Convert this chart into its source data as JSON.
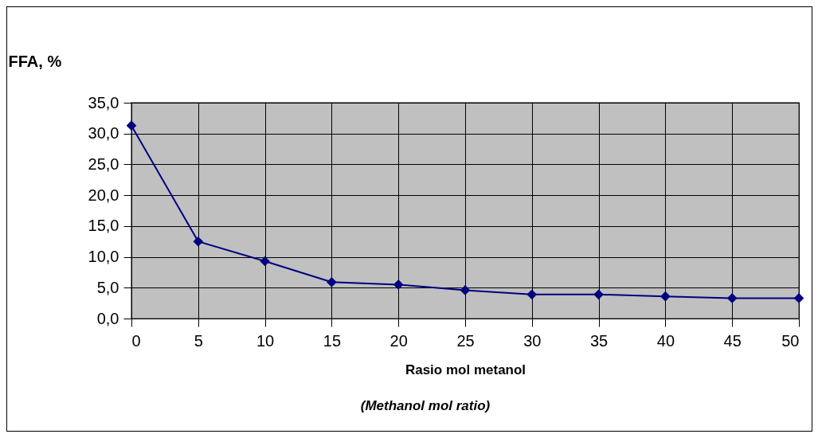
{
  "chart_data": {
    "type": "line",
    "xlabel": "Rasio mol metanol",
    "ylabel": "FFA, %",
    "annotations": [
      "(Methanol mol ratio)"
    ],
    "x": [
      0,
      5,
      10,
      15,
      20,
      25,
      30,
      35,
      40,
      45,
      50
    ],
    "series": [
      {
        "color": "#000080",
        "values": [
          31.3,
          12.5,
          9.3,
          5.9,
          5.5,
          4.6,
          3.9,
          3.9,
          3.6,
          3.3,
          3.3
        ]
      }
    ],
    "xlim": [
      0,
      50
    ],
    "xticks": [
      0,
      5,
      10,
      15,
      20,
      25,
      30,
      35,
      40,
      45,
      50
    ],
    "ylim": [
      0,
      35
    ],
    "yticks": [
      {
        "value": 0,
        "label": "0,0"
      },
      {
        "value": 5,
        "label": "5,0"
      },
      {
        "value": 10,
        "label": "10,0"
      },
      {
        "value": 15,
        "label": "15,0"
      },
      {
        "value": 20,
        "label": "20,0"
      },
      {
        "value": 25,
        "label": "25,0"
      },
      {
        "value": 30,
        "label": "30,0"
      },
      {
        "value": 35,
        "label": "35,0"
      }
    ],
    "grid": true,
    "marker": "diamond",
    "line_style": "solid"
  }
}
